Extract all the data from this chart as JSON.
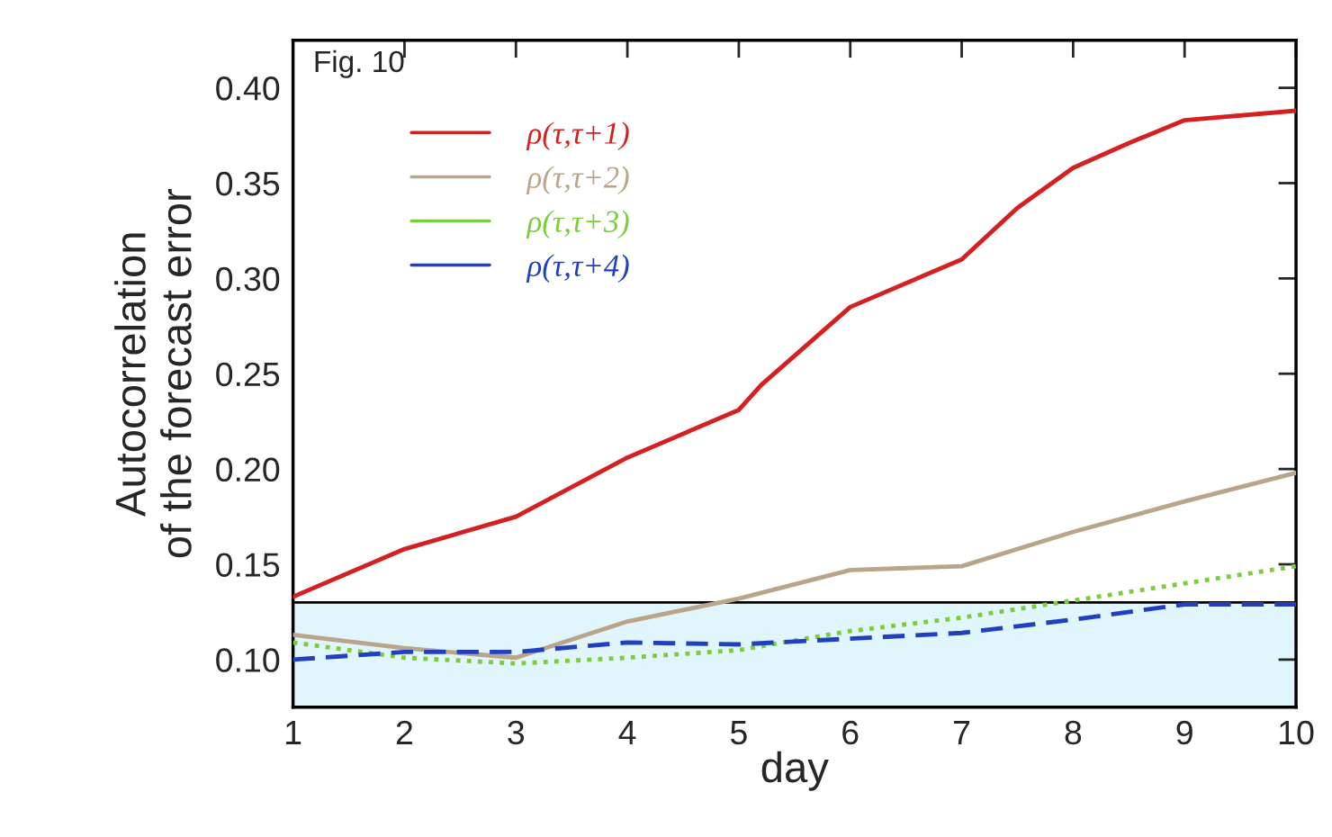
{
  "chart_data": {
    "type": "line",
    "xlabel": "day",
    "ylabel": "Autocorrelation\nof the forecast error",
    "annotations": [
      "Fig. 10"
    ],
    "x": [
      1,
      2,
      3,
      4,
      5,
      6,
      7,
      8,
      9,
      10
    ],
    "series": [
      {
        "name": "ρ(τ,τ+1)",
        "color": "#d42020",
        "line_style": "solid",
        "x": [
          1,
          2,
          3,
          4,
          5,
          5.2,
          6,
          7,
          7.5,
          8,
          8.5,
          9,
          10
        ],
        "values": [
          0.133,
          0.158,
          0.175,
          0.206,
          0.231,
          0.244,
          0.285,
          0.31,
          0.337,
          0.358,
          0.371,
          0.383,
          0.388
        ]
      },
      {
        "name": "ρ(τ,τ+2)",
        "color": "#b8a58a",
        "line_style": "solid",
        "x": [
          1,
          2,
          3,
          4,
          5,
          6,
          6.5,
          7,
          8,
          9,
          10
        ],
        "values": [
          0.113,
          0.106,
          0.101,
          0.12,
          0.132,
          0.147,
          0.148,
          0.149,
          0.167,
          0.183,
          0.198
        ]
      },
      {
        "name": "ρ(τ,τ+3)",
        "color": "#7ccc3c",
        "line_style": "dotted",
        "values": [
          0.109,
          0.101,
          0.098,
          0.101,
          0.105,
          0.115,
          0.122,
          0.131,
          0.14,
          0.149
        ]
      },
      {
        "name": "ρ(τ,τ+4)",
        "color": "#2040c0",
        "line_style": "dashed",
        "values": [
          0.1,
          0.104,
          0.104,
          0.109,
          0.108,
          0.111,
          0.114,
          0.121,
          0.129,
          0.129
        ]
      }
    ],
    "xlim": [
      1,
      10
    ],
    "xticks": [
      1,
      2,
      3,
      4,
      5,
      6,
      7,
      8,
      9,
      10
    ],
    "ylim": [
      0.075,
      0.425
    ],
    "yticks": [
      {
        "value": 0.1,
        "label": "0.10"
      },
      {
        "value": 0.15,
        "label": "0.15"
      },
      {
        "value": 0.2,
        "label": "0.20"
      },
      {
        "value": 0.25,
        "label": "0.25"
      },
      {
        "value": 0.3,
        "label": "0.30"
      },
      {
        "value": 0.35,
        "label": "0.35"
      },
      {
        "value": 0.4,
        "label": "0.40"
      }
    ],
    "bands": [
      {
        "axis": "y",
        "from": 0.075,
        "to": 0.13,
        "color": "#e0f6fc"
      }
    ],
    "ref_lines": [
      {
        "axis": "y",
        "value": 0.13,
        "color": "#000000",
        "line_style": "solid"
      }
    ],
    "grid": false,
    "legend": "top left",
    "marker": "none"
  }
}
